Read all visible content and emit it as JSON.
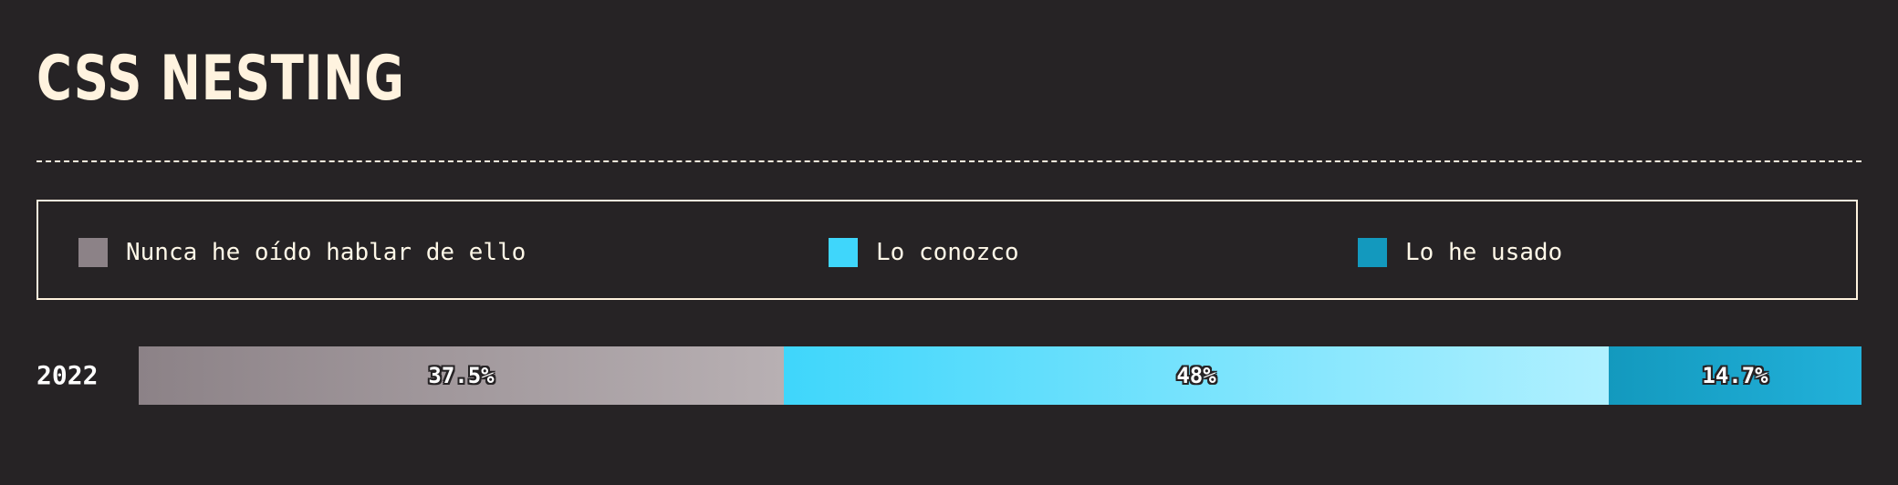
{
  "header": {
    "title": "CSS NESTING"
  },
  "legend": {
    "items": [
      {
        "label": "Nunca he oído hablar de ello",
        "color": "#8c8287"
      },
      {
        "label": "Lo conozco",
        "color": "#3fd6fb"
      },
      {
        "label": "Lo he usado",
        "color": "#1399be"
      }
    ]
  },
  "chart_data": {
    "type": "bar",
    "orientation": "horizontal",
    "stacked": true,
    "title": "CSS NESTING",
    "categories": [
      "2022"
    ],
    "series": [
      {
        "name": "Nunca he oído hablar de ello",
        "values": [
          37.5
        ],
        "label": "37.5%",
        "color": "#8c8287"
      },
      {
        "name": "Lo conozco",
        "values": [
          48
        ],
        "label": "48%",
        "color": "#3fd6fb"
      },
      {
        "name": "Lo he usado",
        "values": [
          14.7
        ],
        "label": "14.7%",
        "color": "#1399be"
      }
    ],
    "unit": "%",
    "xlim": [
      0,
      100
    ],
    "grid": false,
    "legend_position": "top"
  }
}
